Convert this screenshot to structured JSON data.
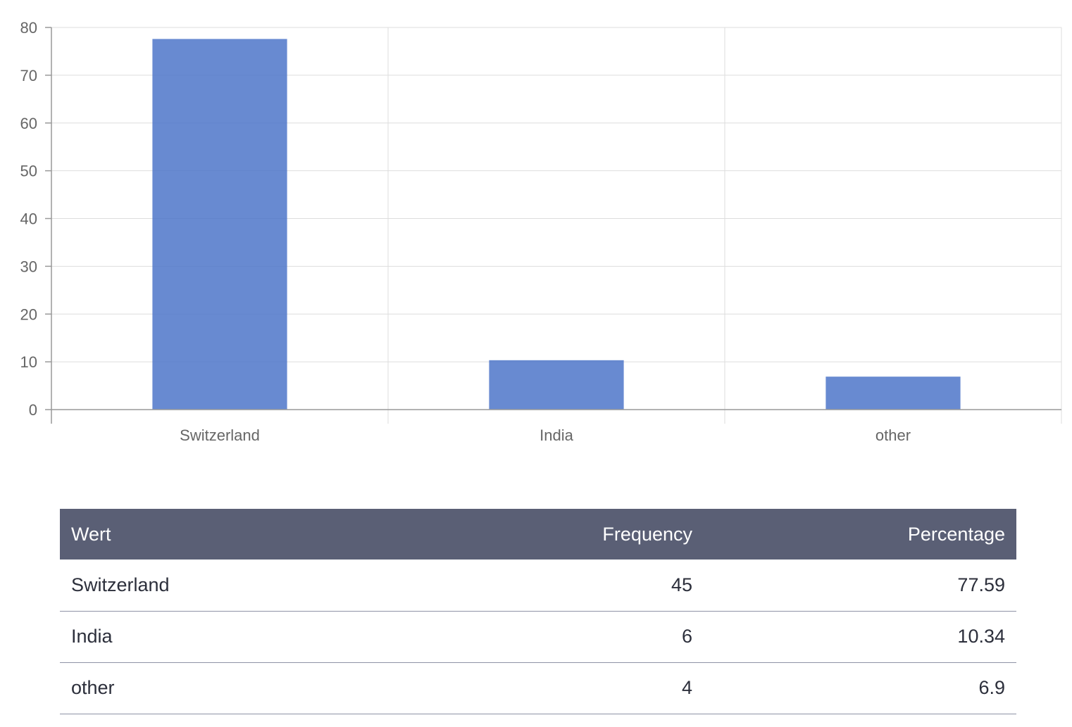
{
  "chart_data": {
    "type": "bar",
    "categories": [
      "Switzerland",
      "India",
      "other"
    ],
    "values": [
      77.59,
      10.34,
      6.9
    ],
    "ylim": [
      0,
      80
    ],
    "yticks": [
      0,
      10,
      20,
      30,
      40,
      50,
      60,
      70,
      80
    ],
    "grid": true,
    "legend": "none",
    "bar_color": "#4d76c9",
    "title": "",
    "xlabel": "",
    "ylabel": ""
  },
  "table": {
    "headers": {
      "wert": "Wert",
      "frequency": "Frequency",
      "percentage": "Percentage"
    },
    "rows": [
      {
        "wert": "Switzerland",
        "frequency": "45",
        "percentage": "77.59"
      },
      {
        "wert": "India",
        "frequency": "6",
        "percentage": "10.34"
      },
      {
        "wert": "other",
        "frequency": "4",
        "percentage": "6.9"
      }
    ],
    "header_color": "#5a5f75"
  }
}
